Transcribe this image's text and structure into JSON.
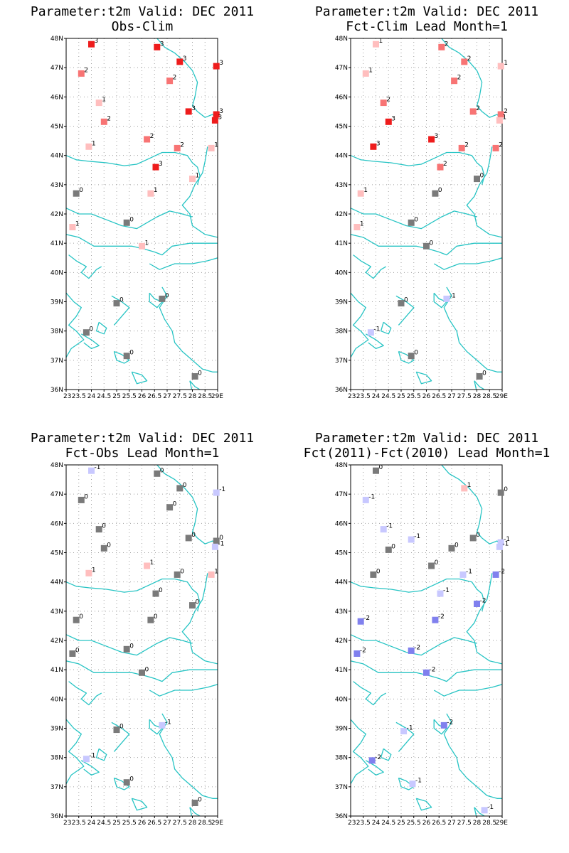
{
  "colors": {
    "coast": "#27c4c4",
    "grid": "#a0a0a0",
    "axis": "#000000",
    "levels": {
      "-2": "#8080ee",
      "-1": "#c8c8ff",
      "0": "#7a7a7a",
      "1": "#ffbebe",
      "2": "#f87474",
      "3": "#ee1c1c"
    }
  },
  "chart_data": [
    {
      "type": "scatter",
      "title": "Parameter:t2m Valid: DEC 2011",
      "subtitle": "Obs-Clim",
      "xlabel": "",
      "ylabel": "",
      "xlim": [
        23,
        29
      ],
      "ylim": [
        36,
        48
      ],
      "x_ticks": [
        "23",
        "23.5",
        "24",
        "24.5",
        "25",
        "25.5",
        "26",
        "26.5",
        "27",
        "27.5",
        "28",
        "28.5",
        "29E"
      ],
      "y_ticks": [
        "36N",
        "37N",
        "38N",
        "39N",
        "40N",
        "41N",
        "42N",
        "43N",
        "44N",
        "45N",
        "46N",
        "47N",
        "48N"
      ],
      "grid": true,
      "points": [
        {
          "lon": 24.0,
          "lat": 47.8,
          "value": 3
        },
        {
          "lon": 26.6,
          "lat": 47.7,
          "value": 3
        },
        {
          "lon": 27.5,
          "lat": 47.2,
          "value": 3
        },
        {
          "lon": 28.95,
          "lat": 47.05,
          "value": 3
        },
        {
          "lon": 23.6,
          "lat": 46.8,
          "value": 2
        },
        {
          "lon": 27.1,
          "lat": 46.55,
          "value": 2
        },
        {
          "lon": 24.3,
          "lat": 45.8,
          "value": 1
        },
        {
          "lon": 24.5,
          "lat": 45.15,
          "value": 2
        },
        {
          "lon": 27.85,
          "lat": 45.5,
          "value": 3
        },
        {
          "lon": 28.95,
          "lat": 45.4,
          "value": 3
        },
        {
          "lon": 28.9,
          "lat": 45.2,
          "value": 3
        },
        {
          "lon": 26.2,
          "lat": 44.55,
          "value": 2
        },
        {
          "lon": 27.4,
          "lat": 44.25,
          "value": 2
        },
        {
          "lon": 23.9,
          "lat": 44.3,
          "value": 1
        },
        {
          "lon": 28.75,
          "lat": 44.25,
          "value": 1
        },
        {
          "lon": 26.55,
          "lat": 43.6,
          "value": 3
        },
        {
          "lon": 28.0,
          "lat": 43.2,
          "value": 1
        },
        {
          "lon": 26.35,
          "lat": 42.7,
          "value": 1
        },
        {
          "lon": 23.4,
          "lat": 42.7,
          "value": 0
        },
        {
          "lon": 25.4,
          "lat": 41.7,
          "value": 0
        },
        {
          "lon": 23.25,
          "lat": 41.55,
          "value": 1
        },
        {
          "lon": 26.0,
          "lat": 40.9,
          "value": 1
        },
        {
          "lon": 25.0,
          "lat": 38.95,
          "value": 0
        },
        {
          "lon": 26.8,
          "lat": 39.1,
          "value": 0
        },
        {
          "lon": 23.8,
          "lat": 37.95,
          "value": 0
        },
        {
          "lon": 25.4,
          "lat": 37.15,
          "value": 0
        },
        {
          "lon": 28.1,
          "lat": 36.45,
          "value": 0
        }
      ]
    },
    {
      "type": "scatter",
      "title": "Parameter:t2m Valid: DEC 2011",
      "subtitle": "Fct-Clim Lead Month=1",
      "xlabel": "",
      "ylabel": "",
      "xlim": [
        23,
        29
      ],
      "ylim": [
        36,
        48
      ],
      "x_ticks": [
        "23",
        "23.5",
        "24",
        "24.5",
        "25",
        "25.5",
        "26",
        "26.5",
        "27",
        "27.5",
        "28",
        "28.5",
        "29E"
      ],
      "y_ticks": [
        "36N",
        "37N",
        "38N",
        "39N",
        "40N",
        "41N",
        "42N",
        "43N",
        "44N",
        "45N",
        "46N",
        "47N",
        "48N"
      ],
      "grid": true,
      "points": [
        {
          "lon": 24.0,
          "lat": 47.8,
          "value": 1
        },
        {
          "lon": 26.6,
          "lat": 47.7,
          "value": 2
        },
        {
          "lon": 27.5,
          "lat": 47.2,
          "value": 2
        },
        {
          "lon": 28.95,
          "lat": 47.05,
          "value": 1
        },
        {
          "lon": 23.6,
          "lat": 46.8,
          "value": 1
        },
        {
          "lon": 27.1,
          "lat": 46.55,
          "value": 2
        },
        {
          "lon": 24.3,
          "lat": 45.8,
          "value": 2
        },
        {
          "lon": 24.5,
          "lat": 45.15,
          "value": 3
        },
        {
          "lon": 27.85,
          "lat": 45.5,
          "value": 2
        },
        {
          "lon": 28.95,
          "lat": 45.4,
          "value": 2
        },
        {
          "lon": 28.9,
          "lat": 45.2,
          "value": 1
        },
        {
          "lon": 26.2,
          "lat": 44.55,
          "value": 3
        },
        {
          "lon": 27.4,
          "lat": 44.25,
          "value": 2
        },
        {
          "lon": 23.9,
          "lat": 44.3,
          "value": 3
        },
        {
          "lon": 28.75,
          "lat": 44.25,
          "value": 2
        },
        {
          "lon": 26.55,
          "lat": 43.6,
          "value": 2
        },
        {
          "lon": 28.0,
          "lat": 43.2,
          "value": 0
        },
        {
          "lon": 26.35,
          "lat": 42.7,
          "value": 0
        },
        {
          "lon": 23.4,
          "lat": 42.7,
          "value": 1
        },
        {
          "lon": 25.4,
          "lat": 41.7,
          "value": 0
        },
        {
          "lon": 23.25,
          "lat": 41.55,
          "value": 1
        },
        {
          "lon": 26.0,
          "lat": 40.9,
          "value": 0
        },
        {
          "lon": 25.0,
          "lat": 38.95,
          "value": 0
        },
        {
          "lon": 26.8,
          "lat": 39.1,
          "value": -1
        },
        {
          "lon": 23.8,
          "lat": 37.95,
          "value": -1
        },
        {
          "lon": 25.4,
          "lat": 37.15,
          "value": 0
        },
        {
          "lon": 28.1,
          "lat": 36.45,
          "value": 0
        }
      ]
    },
    {
      "type": "scatter",
      "title": "Parameter:t2m Valid: DEC 2011",
      "subtitle": "Fct-Obs Lead Month=1",
      "xlabel": "",
      "ylabel": "",
      "xlim": [
        23,
        29
      ],
      "ylim": [
        36,
        48
      ],
      "x_ticks": [
        "23",
        "23.5",
        "24",
        "24.5",
        "25",
        "25.5",
        "26",
        "26.5",
        "27",
        "27.5",
        "28",
        "28.5",
        "29E"
      ],
      "y_ticks": [
        "36N",
        "37N",
        "38N",
        "39N",
        "40N",
        "41N",
        "42N",
        "43N",
        "44N",
        "45N",
        "46N",
        "47N",
        "48N"
      ],
      "grid": true,
      "points": [
        {
          "lon": 24.0,
          "lat": 47.8,
          "value": -1
        },
        {
          "lon": 26.6,
          "lat": 47.7,
          "value": 0
        },
        {
          "lon": 27.5,
          "lat": 47.2,
          "value": 0
        },
        {
          "lon": 28.95,
          "lat": 47.05,
          "value": -1
        },
        {
          "lon": 23.6,
          "lat": 46.8,
          "value": 0
        },
        {
          "lon": 27.1,
          "lat": 46.55,
          "value": 0
        },
        {
          "lon": 24.3,
          "lat": 45.8,
          "value": 0
        },
        {
          "lon": 24.5,
          "lat": 45.15,
          "value": 0
        },
        {
          "lon": 27.85,
          "lat": 45.5,
          "value": 0
        },
        {
          "lon": 28.95,
          "lat": 45.4,
          "value": 0
        },
        {
          "lon": 28.9,
          "lat": 45.2,
          "value": -1
        },
        {
          "lon": 26.2,
          "lat": 44.55,
          "value": 1
        },
        {
          "lon": 27.4,
          "lat": 44.25,
          "value": 0
        },
        {
          "lon": 23.9,
          "lat": 44.3,
          "value": 1
        },
        {
          "lon": 28.75,
          "lat": 44.25,
          "value": 1
        },
        {
          "lon": 26.55,
          "lat": 43.6,
          "value": 0
        },
        {
          "lon": 28.0,
          "lat": 43.2,
          "value": 0
        },
        {
          "lon": 26.35,
          "lat": 42.7,
          "value": 0
        },
        {
          "lon": 23.4,
          "lat": 42.7,
          "value": 0
        },
        {
          "lon": 25.4,
          "lat": 41.7,
          "value": 0
        },
        {
          "lon": 23.25,
          "lat": 41.55,
          "value": 0
        },
        {
          "lon": 26.0,
          "lat": 40.9,
          "value": 0
        },
        {
          "lon": 25.0,
          "lat": 38.95,
          "value": 0
        },
        {
          "lon": 26.8,
          "lat": 39.1,
          "value": -1
        },
        {
          "lon": 23.8,
          "lat": 37.95,
          "value": -1
        },
        {
          "lon": 25.4,
          "lat": 37.15,
          "value": 0
        },
        {
          "lon": 28.1,
          "lat": 36.45,
          "value": 0
        }
      ]
    },
    {
      "type": "scatter",
      "title": "Parameter:t2m Valid: DEC 2011",
      "subtitle": "Fct(2011)-Fct(2010) Lead Month=1",
      "xlabel": "",
      "ylabel": "",
      "xlim": [
        23,
        29
      ],
      "ylim": [
        36,
        48
      ],
      "x_ticks": [
        "23",
        "23.5",
        "24",
        "24.5",
        "25",
        "25.5",
        "26",
        "26.5",
        "27",
        "27.5",
        "28",
        "28.5",
        "29E"
      ],
      "y_ticks": [
        "36N",
        "37N",
        "38N",
        "39N",
        "40N",
        "41N",
        "42N",
        "43N",
        "44N",
        "45N",
        "46N",
        "47N",
        "48N"
      ],
      "grid": true,
      "points": [
        {
          "lon": 24.0,
          "lat": 47.8,
          "value": 0
        },
        {
          "lon": 27.5,
          "lat": 47.2,
          "value": 1
        },
        {
          "lon": 28.95,
          "lat": 47.05,
          "value": 0
        },
        {
          "lon": 23.6,
          "lat": 46.8,
          "value": -1
        },
        {
          "lon": 24.3,
          "lat": 45.8,
          "value": -1
        },
        {
          "lon": 25.4,
          "lat": 45.45,
          "value": -1
        },
        {
          "lon": 27.85,
          "lat": 45.5,
          "value": 0
        },
        {
          "lon": 28.95,
          "lat": 45.35,
          "value": -1
        },
        {
          "lon": 28.9,
          "lat": 45.2,
          "value": -1
        },
        {
          "lon": 24.5,
          "lat": 45.1,
          "value": 0
        },
        {
          "lon": 27.0,
          "lat": 45.15,
          "value": 0
        },
        {
          "lon": 26.2,
          "lat": 44.55,
          "value": 0
        },
        {
          "lon": 23.9,
          "lat": 44.25,
          "value": 0
        },
        {
          "lon": 27.45,
          "lat": 44.25,
          "value": -1
        },
        {
          "lon": 28.75,
          "lat": 44.25,
          "value": -2
        },
        {
          "lon": 26.55,
          "lat": 43.6,
          "value": -1
        },
        {
          "lon": 28.0,
          "lat": 43.25,
          "value": -2
        },
        {
          "lon": 26.35,
          "lat": 42.7,
          "value": -2
        },
        {
          "lon": 23.4,
          "lat": 42.65,
          "value": -2
        },
        {
          "lon": 25.4,
          "lat": 41.65,
          "value": -2
        },
        {
          "lon": 23.25,
          "lat": 41.55,
          "value": -2
        },
        {
          "lon": 26.0,
          "lat": 40.9,
          "value": -2
        },
        {
          "lon": 25.1,
          "lat": 38.9,
          "value": -1
        },
        {
          "lon": 26.7,
          "lat": 39.1,
          "value": -2
        },
        {
          "lon": 23.85,
          "lat": 37.9,
          "value": -2
        },
        {
          "lon": 25.45,
          "lat": 37.1,
          "value": -1
        },
        {
          "lon": 28.3,
          "lat": 36.2,
          "value": -1
        }
      ]
    }
  ]
}
